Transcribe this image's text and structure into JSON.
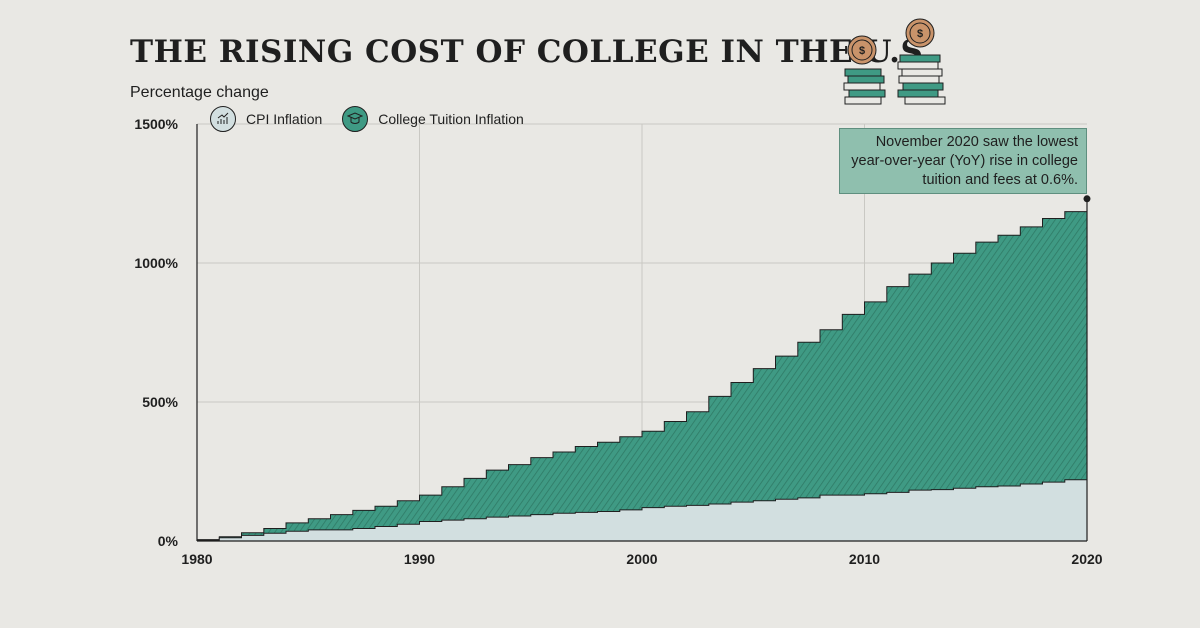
{
  "title": "THE RISING COST OF COLLEGE IN THE U.S.",
  "ylabel": "Percentage change",
  "legend": [
    {
      "label": "CPI Inflation",
      "icon": "rising-chart-icon",
      "color": "#d2dfe0"
    },
    {
      "label": "College Tuition Inflation",
      "icon": "graduation-icon",
      "color": "#3f9a84"
    }
  ],
  "annotation": "November 2020 saw the lowest year-over-year (YoY) rise in college tuition and fees at 0.6%.",
  "colors": {
    "tuition": "#3f9a84",
    "tuition_hatch": "#2f7a66",
    "cpi": "#d2dfe0",
    "background": "#e9e8e4"
  },
  "chart_data": {
    "type": "area",
    "title": "THE RISING COST OF COLLEGE IN THE U.S.",
    "xlabel": "",
    "ylabel": "Percentage change",
    "x_ticks": [
      "1980",
      "1990",
      "2000",
      "2010",
      "2020"
    ],
    "y_ticks": [
      "0%",
      "500%",
      "1000%",
      "1500%"
    ],
    "xlim": [
      1980,
      2020
    ],
    "ylim": [
      0,
      1500
    ],
    "grid": true,
    "step": true,
    "x": [
      1980,
      1981,
      1982,
      1983,
      1984,
      1985,
      1986,
      1987,
      1988,
      1989,
      1990,
      1991,
      1992,
      1993,
      1994,
      1995,
      1996,
      1997,
      1998,
      1999,
      2000,
      2001,
      2002,
      2003,
      2004,
      2005,
      2006,
      2007,
      2008,
      2009,
      2010,
      2011,
      2012,
      2013,
      2014,
      2015,
      2016,
      2017,
      2018,
      2019,
      2020
    ],
    "series": [
      {
        "name": "College Tuition Inflation",
        "values": [
          5,
          15,
          30,
          45,
          65,
          80,
          95,
          110,
          125,
          145,
          165,
          195,
          225,
          255,
          275,
          300,
          320,
          340,
          355,
          375,
          395,
          430,
          465,
          520,
          570,
          620,
          665,
          715,
          760,
          815,
          860,
          915,
          960,
          1000,
          1035,
          1075,
          1100,
          1130,
          1160,
          1185,
          1195
        ]
      },
      {
        "name": "CPI Inflation",
        "values": [
          2,
          12,
          20,
          28,
          35,
          40,
          40,
          45,
          52,
          60,
          70,
          75,
          80,
          86,
          90,
          95,
          100,
          103,
          106,
          112,
          120,
          125,
          128,
          133,
          140,
          145,
          150,
          155,
          165,
          165,
          170,
          175,
          183,
          185,
          190,
          195,
          198,
          205,
          212,
          220,
          225
        ]
      }
    ]
  }
}
